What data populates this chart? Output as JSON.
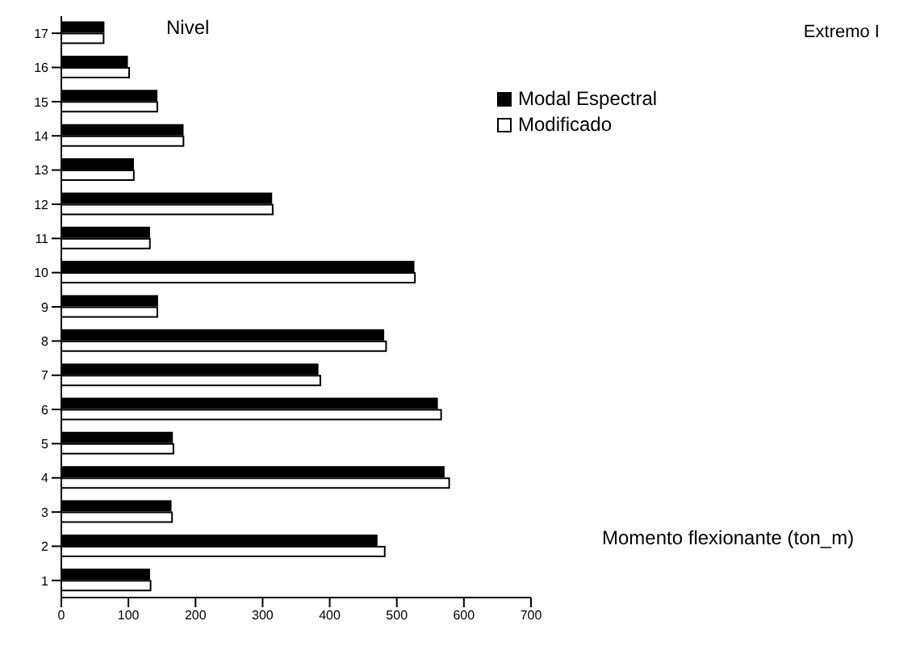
{
  "chart_data": {
    "type": "bar",
    "orientation": "horizontal",
    "title": "Extremo I",
    "ylabel": "Nivel",
    "xlabel": "Momento flexionante (ton_m)",
    "categories": [
      "17",
      "16",
      "15",
      "14",
      "13",
      "12",
      "11",
      "10",
      "9",
      "8",
      "7",
      "6",
      "5",
      "4",
      "3",
      "2",
      "1"
    ],
    "series": [
      {
        "name": "Modal Espectral",
        "color": "#000000",
        "values": [
          63,
          98,
          142,
          181,
          107,
          313,
          131,
          525,
          143,
          480,
          382,
          560,
          165,
          570,
          163,
          470,
          131
        ]
      },
      {
        "name": "Modificado",
        "color": "#ffffff",
        "values": [
          63,
          101,
          143,
          182,
          108,
          315,
          132,
          527,
          143,
          484,
          386,
          566,
          167,
          578,
          165,
          482,
          133
        ]
      }
    ],
    "xlim": [
      0,
      700
    ],
    "xticks": [
      0,
      100,
      200,
      300,
      400,
      500,
      600,
      700
    ],
    "grid": false,
    "legend": "top right"
  }
}
